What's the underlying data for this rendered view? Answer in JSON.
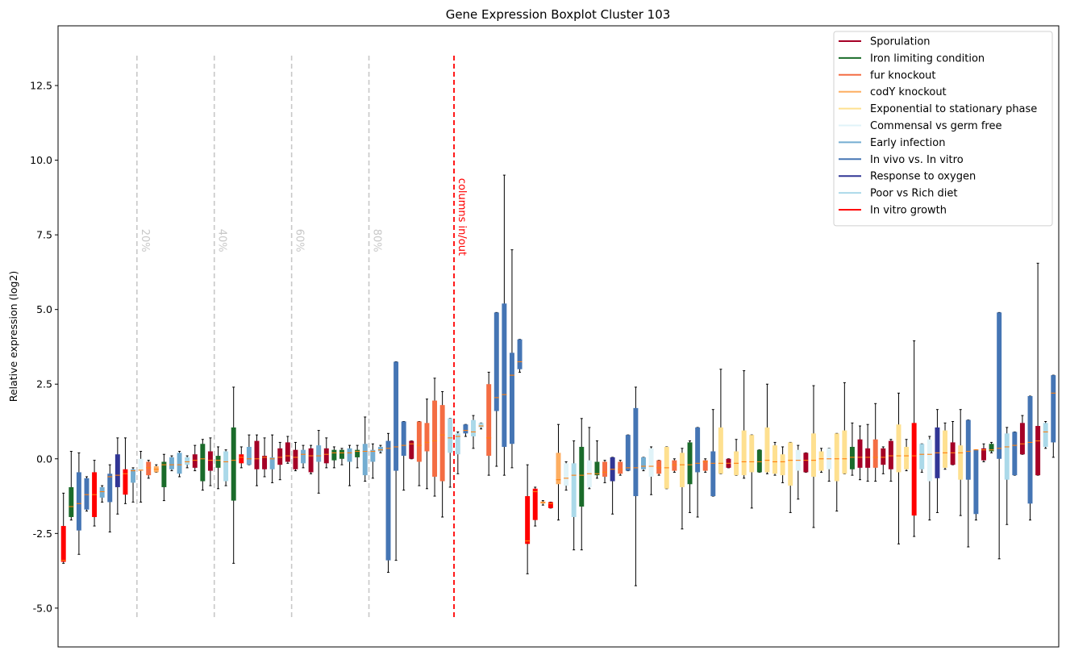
{
  "chart_data": {
    "type": "boxplot",
    "title": "Gene Expression Boxplot Cluster 103",
    "ylabel": "Relative expression (log2)",
    "xlabel": "",
    "ylim": [
      -6.3,
      14.5
    ],
    "yticks": [
      "-5.0",
      "-2.5",
      "0.0",
      "2.5",
      "5.0",
      "7.5",
      "10.0",
      "12.5"
    ],
    "ytick_values": [
      -5,
      -2.5,
      0,
      2.5,
      5,
      7.5,
      10,
      12.5
    ],
    "grid": false,
    "legend_placement": "top-right",
    "legend": [
      {
        "name": "Sporulation",
        "color": "#a50026"
      },
      {
        "name": "Iron limiting condition",
        "color": "#1a6b2a"
      },
      {
        "name": "fur knockout",
        "color": "#f46d43"
      },
      {
        "name": "codY knockout",
        "color": "#fdae61"
      },
      {
        "name": "Exponential to stationary phase",
        "color": "#fee090"
      },
      {
        "name": "Commensal vs germ free",
        "color": "#e0f3f8"
      },
      {
        "name": "Early infection",
        "color": "#74add1"
      },
      {
        "name": "In vivo vs. In vitro",
        "color": "#4575b4"
      },
      {
        "name": "Response to oxygen",
        "color": "#313695"
      },
      {
        "name": "Poor vs Rich diet",
        "color": "#abd9e9"
      },
      {
        "name": "In vitro growth",
        "color": "#ff0000"
      }
    ],
    "percent_markers": [
      {
        "label": "20%",
        "after_box": 9
      },
      {
        "label": "40%",
        "after_box": 19
      },
      {
        "label": "60%",
        "after_box": 29
      },
      {
        "label": "80%",
        "after_box": 39
      }
    ],
    "inout_marker": {
      "label": "columns in/out",
      "after_box": 50
    },
    "boxes": [
      {
        "c": 10,
        "wl": -3.5,
        "q1": -3.45,
        "med": -3.4,
        "q3": -2.25,
        "wh": -1.15
      },
      {
        "c": 1,
        "wl": -2.05,
        "q1": -1.95,
        "med": -1.6,
        "q3": -0.95,
        "wh": 0.25
      },
      {
        "c": 7,
        "wl": -3.2,
        "q1": -2.4,
        "med": -1.5,
        "q3": -0.45,
        "wh": 0.2
      },
      {
        "c": 7,
        "wl": -1.75,
        "q1": -1.7,
        "med": -1.2,
        "q3": -0.65,
        "wh": -0.6
      },
      {
        "c": 10,
        "wl": -2.25,
        "q1": -1.95,
        "med": -1.2,
        "q3": -0.45,
        "wh": -0.05
      },
      {
        "c": 6,
        "wl": -1.45,
        "q1": -1.3,
        "med": -1.1,
        "q3": -0.95,
        "wh": -0.9
      },
      {
        "c": 7,
        "wl": -2.45,
        "q1": -1.45,
        "med": -0.6,
        "q3": -0.5,
        "wh": -0.2
      },
      {
        "c": 8,
        "wl": -1.85,
        "q1": -0.95,
        "med": -0.55,
        "q3": 0.15,
        "wh": 0.7
      },
      {
        "c": 10,
        "wl": -1.5,
        "q1": -1.2,
        "med": -0.5,
        "q3": -0.35,
        "wh": 0.7
      },
      {
        "c": 6,
        "wl": -1.45,
        "q1": -0.8,
        "med": -0.4,
        "q3": -0.35,
        "wh": -0.3
      },
      {
        "c": 5,
        "wl": -1.45,
        "q1": -0.4,
        "med": -0.38,
        "q3": 0.0,
        "wh": 0.25
      },
      {
        "c": 2,
        "wl": -0.65,
        "q1": -0.55,
        "med": -0.3,
        "q3": -0.1,
        "wh": -0.05
      },
      {
        "c": 3,
        "wl": -0.45,
        "q1": -0.45,
        "med": -0.35,
        "q3": -0.25,
        "wh": -0.2
      },
      {
        "c": 1,
        "wl": -1.4,
        "q1": -0.95,
        "med": -0.2,
        "q3": -0.1,
        "wh": 0.15
      },
      {
        "c": 6,
        "wl": -0.4,
        "q1": -0.35,
        "med": -0.2,
        "q3": 0.05,
        "wh": 0.1
      },
      {
        "c": 6,
        "wl": -0.6,
        "q1": -0.5,
        "med": -0.2,
        "q3": 0.2,
        "wh": 0.25
      },
      {
        "c": 9,
        "wl": -0.3,
        "q1": -0.2,
        "med": -0.1,
        "q3": 0.05,
        "wh": 0.1
      },
      {
        "c": 0,
        "wl": -0.4,
        "q1": -0.3,
        "med": -0.05,
        "q3": 0.15,
        "wh": 0.45
      },
      {
        "c": 1,
        "wl": -1.05,
        "q1": -0.75,
        "med": 0.0,
        "q3": 0.5,
        "wh": 0.65
      },
      {
        "c": 0,
        "wl": -0.9,
        "q1": -0.4,
        "med": -0.05,
        "q3": 0.25,
        "wh": 0.7
      },
      {
        "c": 1,
        "wl": -1.0,
        "q1": -0.3,
        "med": -0.05,
        "q3": 0.1,
        "wh": 0.4
      },
      {
        "c": 9,
        "wl": -0.9,
        "q1": -0.75,
        "med": -0.1,
        "q3": 0.25,
        "wh": 0.3
      },
      {
        "c": 1,
        "wl": -3.5,
        "q1": -1.4,
        "med": -0.05,
        "q3": 1.05,
        "wh": 2.4
      },
      {
        "c": 10,
        "wl": -0.3,
        "q1": -0.15,
        "med": 0.05,
        "q3": 0.15,
        "wh": 0.4
      },
      {
        "c": 6,
        "wl": -0.2,
        "q1": -0.2,
        "med": 0.0,
        "q3": 0.4,
        "wh": 0.8
      },
      {
        "c": 0,
        "wl": -0.9,
        "q1": -0.35,
        "med": 0.0,
        "q3": 0.6,
        "wh": 0.8
      },
      {
        "c": 0,
        "wl": -0.6,
        "q1": -0.35,
        "med": 0.05,
        "q3": 0.1,
        "wh": 0.7
      },
      {
        "c": 6,
        "wl": -0.8,
        "q1": -0.35,
        "med": 0.0,
        "q3": 0.05,
        "wh": 0.8
      },
      {
        "c": 0,
        "wl": -0.7,
        "q1": -0.2,
        "med": 0.05,
        "q3": 0.35,
        "wh": 0.55
      },
      {
        "c": 0,
        "wl": -0.15,
        "q1": -0.1,
        "med": 0.1,
        "q3": 0.55,
        "wh": 0.75
      },
      {
        "c": 0,
        "wl": -0.4,
        "q1": -0.35,
        "med": 0.05,
        "q3": 0.3,
        "wh": 0.55
      },
      {
        "c": 6,
        "wl": -0.3,
        "q1": -0.15,
        "med": 0.15,
        "q3": 0.3,
        "wh": 0.45
      },
      {
        "c": 0,
        "wl": -0.5,
        "q1": -0.45,
        "med": 0.1,
        "q3": 0.35,
        "wh": 0.45
      },
      {
        "c": 6,
        "wl": -1.15,
        "q1": -0.1,
        "med": 0.1,
        "q3": 0.45,
        "wh": 0.95
      },
      {
        "c": 0,
        "wl": -0.3,
        "q1": -0.15,
        "med": 0.15,
        "q3": 0.35,
        "wh": 0.7
      },
      {
        "c": 1,
        "wl": -0.3,
        "q1": -0.05,
        "med": 0.2,
        "q3": 0.3,
        "wh": 0.4
      },
      {
        "c": 1,
        "wl": -0.2,
        "q1": 0.0,
        "med": 0.2,
        "q3": 0.3,
        "wh": 0.35
      },
      {
        "c": 6,
        "wl": -0.9,
        "q1": -0.1,
        "med": 0.2,
        "q3": 0.35,
        "wh": 0.45
      },
      {
        "c": 1,
        "wl": -0.3,
        "q1": 0.05,
        "med": 0.25,
        "q3": 0.3,
        "wh": 0.45
      },
      {
        "c": 6,
        "wl": -0.75,
        "q1": -0.55,
        "med": 0.25,
        "q3": 0.5,
        "wh": 1.4
      },
      {
        "c": 6,
        "wl": -0.65,
        "q1": -0.1,
        "med": 0.25,
        "q3": 0.3,
        "wh": 0.5
      },
      {
        "c": 6,
        "wl": 0.2,
        "q1": 0.25,
        "med": 0.3,
        "q3": 0.4,
        "wh": 0.45
      },
      {
        "c": 7,
        "wl": -3.8,
        "q1": -3.4,
        "med": 0.35,
        "q3": 0.6,
        "wh": 0.85
      },
      {
        "c": 7,
        "wl": -3.4,
        "q1": -0.4,
        "med": 0.4,
        "q3": 3.25,
        "wh": 3.25
      },
      {
        "c": 7,
        "wl": -1.05,
        "q1": 0.1,
        "med": 0.45,
        "q3": 1.25,
        "wh": 1.25
      },
      {
        "c": 0,
        "wl": 0.0,
        "q1": 0.0,
        "med": 0.5,
        "q3": 0.6,
        "wh": 0.6
      },
      {
        "c": 2,
        "wl": -0.9,
        "q1": -0.1,
        "med": 0.45,
        "q3": 1.25,
        "wh": 1.25
      },
      {
        "c": 2,
        "wl": -1.0,
        "q1": 0.25,
        "med": 0.55,
        "q3": 1.2,
        "wh": 2.0
      },
      {
        "c": 2,
        "wl": -1.25,
        "q1": -0.6,
        "med": 0.6,
        "q3": 1.95,
        "wh": 2.7
      },
      {
        "c": 2,
        "wl": -1.95,
        "q1": -0.75,
        "med": 0.8,
        "q3": 1.8,
        "wh": 2.25
      },
      {
        "c": 9,
        "wl": -0.95,
        "q1": 0.2,
        "med": 0.7,
        "q3": 1.35,
        "wh": 1.35
      },
      {
        "c": 9,
        "wl": -0.5,
        "q1": 0.15,
        "med": 0.75,
        "q3": 0.85,
        "wh": 0.9
      },
      {
        "c": 7,
        "wl": 0.75,
        "q1": 0.85,
        "med": 0.95,
        "q3": 1.15,
        "wh": 1.15
      },
      {
        "c": 9,
        "wl": 0.35,
        "q1": 0.75,
        "med": 0.9,
        "q3": 1.3,
        "wh": 1.45
      },
      {
        "c": 9,
        "wl": 1.0,
        "q1": 1.05,
        "med": 1.1,
        "q3": 1.2,
        "wh": 1.2
      },
      {
        "c": 2,
        "wl": -0.55,
        "q1": 0.1,
        "med": 0.7,
        "q3": 2.5,
        "wh": 2.9
      },
      {
        "c": 7,
        "wl": -0.25,
        "q1": 1.6,
        "med": 2.05,
        "q3": 4.9,
        "wh": 4.9
      },
      {
        "c": 7,
        "wl": -0.55,
        "q1": 0.4,
        "med": 2.15,
        "q3": 5.2,
        "wh": 9.5
      },
      {
        "c": 7,
        "wl": -0.3,
        "q1": 0.5,
        "med": 2.8,
        "q3": 3.55,
        "wh": 7.0
      },
      {
        "c": 7,
        "wl": 2.9,
        "q1": 3.0,
        "med": 3.25,
        "q3": 4.0,
        "wh": 4.0
      },
      {
        "c": 10,
        "wl": -3.85,
        "q1": -2.85,
        "med": -2.75,
        "q3": -1.25,
        "wh": -0.2
      },
      {
        "c": 10,
        "wl": -2.25,
        "q1": -2.05,
        "med": -1.1,
        "q3": -1.0,
        "wh": -0.95
      },
      {
        "c": 3,
        "wl": -1.55,
        "q1": -1.5,
        "med": -1.45,
        "q3": -1.45,
        "wh": -1.4
      },
      {
        "c": 10,
        "wl": -1.65,
        "q1": -1.65,
        "med": -1.5,
        "q3": -1.45,
        "wh": -1.45
      },
      {
        "c": 3,
        "wl": -2.05,
        "q1": -0.85,
        "med": -0.7,
        "q3": 0.2,
        "wh": 1.15
      },
      {
        "c": 5,
        "wl": -1.05,
        "q1": -0.9,
        "med": -0.65,
        "q3": -0.15,
        "wh": -0.1
      },
      {
        "c": 9,
        "wl": -3.05,
        "q1": -1.95,
        "med": -0.55,
        "q3": -0.15,
        "wh": 0.6
      },
      {
        "c": 1,
        "wl": -3.05,
        "q1": -1.6,
        "med": -0.55,
        "q3": 0.4,
        "wh": 1.35
      },
      {
        "c": 5,
        "wl": -1.0,
        "q1": -0.95,
        "med": -0.5,
        "q3": -0.05,
        "wh": 1.05
      },
      {
        "c": 1,
        "wl": -0.65,
        "q1": -0.55,
        "med": -0.5,
        "q3": -0.1,
        "wh": 0.6
      },
      {
        "c": 2,
        "wl": -0.8,
        "q1": -0.6,
        "med": -0.45,
        "q3": -0.1,
        "wh": -0.05
      },
      {
        "c": 8,
        "wl": -1.85,
        "q1": -0.75,
        "med": -0.35,
        "q3": 0.05,
        "wh": 0.05
      },
      {
        "c": 2,
        "wl": -0.55,
        "q1": -0.5,
        "med": -0.35,
        "q3": -0.1,
        "wh": -0.05
      },
      {
        "c": 7,
        "wl": -0.4,
        "q1": -0.4,
        "med": -0.3,
        "q3": 0.8,
        "wh": 0.8
      },
      {
        "c": 7,
        "wl": -4.25,
        "q1": -1.25,
        "med": -0.3,
        "q3": 1.7,
        "wh": 2.4
      },
      {
        "c": 6,
        "wl": -0.4,
        "q1": -0.35,
        "med": -0.25,
        "q3": 0.05,
        "wh": 0.05
      },
      {
        "c": 5,
        "wl": -1.2,
        "q1": -0.6,
        "med": -0.25,
        "q3": 0.35,
        "wh": 0.4
      },
      {
        "c": 2,
        "wl": -0.55,
        "q1": -0.5,
        "med": -0.3,
        "q3": -0.05,
        "wh": -0.05
      },
      {
        "c": 4,
        "wl": -1.0,
        "q1": -1.0,
        "med": -0.3,
        "q3": 0.4,
        "wh": 0.4
      },
      {
        "c": 2,
        "wl": -0.45,
        "q1": -0.4,
        "med": -0.2,
        "q3": -0.05,
        "wh": 0.0
      },
      {
        "c": 4,
        "wl": -2.35,
        "q1": -0.95,
        "med": -0.2,
        "q3": 0.2,
        "wh": 0.35
      },
      {
        "c": 1,
        "wl": -1.8,
        "q1": -0.85,
        "med": -0.2,
        "q3": 0.55,
        "wh": 0.6
      },
      {
        "c": 7,
        "wl": -1.95,
        "q1": -0.45,
        "med": -0.15,
        "q3": 1.05,
        "wh": 1.05
      },
      {
        "c": 2,
        "wl": -0.45,
        "q1": -0.4,
        "med": -0.1,
        "q3": -0.05,
        "wh": 0.0
      },
      {
        "c": 7,
        "wl": -1.25,
        "q1": -1.25,
        "med": -0.15,
        "q3": 0.25,
        "wh": 1.65
      },
      {
        "c": 4,
        "wl": -0.5,
        "q1": -0.5,
        "med": -0.15,
        "q3": 1.05,
        "wh": 3.0
      },
      {
        "c": 0,
        "wl": -0.3,
        "q1": -0.3,
        "med": -0.15,
        "q3": 0.0,
        "wh": 0.0
      },
      {
        "c": 4,
        "wl": -0.55,
        "q1": -0.55,
        "med": -0.15,
        "q3": 0.25,
        "wh": 0.65
      },
      {
        "c": 4,
        "wl": -0.65,
        "q1": -0.55,
        "med": -0.1,
        "q3": 0.95,
        "wh": 2.95
      },
      {
        "c": 4,
        "wl": -1.65,
        "q1": -0.45,
        "med": -0.1,
        "q3": 0.8,
        "wh": 0.8
      },
      {
        "c": 1,
        "wl": -0.45,
        "q1": -0.45,
        "med": -0.1,
        "q3": 0.3,
        "wh": 0.3
      },
      {
        "c": 4,
        "wl": -0.5,
        "q1": -0.45,
        "med": -0.05,
        "q3": 1.05,
        "wh": 2.5
      },
      {
        "c": 4,
        "wl": -0.55,
        "q1": -0.5,
        "med": -0.1,
        "q3": 0.45,
        "wh": 0.55
      },
      {
        "c": 4,
        "wl": -0.8,
        "q1": -0.55,
        "med": -0.1,
        "q3": 0.15,
        "wh": 0.4
      },
      {
        "c": 4,
        "wl": -1.8,
        "q1": -0.9,
        "med": -0.05,
        "q3": 0.55,
        "wh": 0.55
      },
      {
        "c": 5,
        "wl": -1.35,
        "q1": -0.4,
        "med": -0.05,
        "q3": 0.3,
        "wh": 0.45
      },
      {
        "c": 0,
        "wl": -0.45,
        "q1": -0.45,
        "med": -0.05,
        "q3": 0.2,
        "wh": 0.2
      },
      {
        "c": 4,
        "wl": -2.3,
        "q1": -0.6,
        "med": -0.05,
        "q3": 0.85,
        "wh": 2.45
      },
      {
        "c": 4,
        "wl": -0.45,
        "q1": -0.4,
        "med": 0.0,
        "q3": 0.25,
        "wh": 0.35
      },
      {
        "c": 5,
        "wl": -0.75,
        "q1": -0.35,
        "med": 0.0,
        "q3": 0.35,
        "wh": 0.35
      },
      {
        "c": 4,
        "wl": -1.75,
        "q1": -0.75,
        "med": 0.0,
        "q3": 0.85,
        "wh": 0.85
      },
      {
        "c": 4,
        "wl": -0.5,
        "q1": -0.5,
        "med": 0.0,
        "q3": 0.95,
        "wh": 2.55
      },
      {
        "c": 1,
        "wl": -0.55,
        "q1": -0.35,
        "med": 0.05,
        "q3": 0.4,
        "wh": 1.2
      },
      {
        "c": 0,
        "wl": -0.7,
        "q1": -0.3,
        "med": 0.05,
        "q3": 0.65,
        "wh": 1.1
      },
      {
        "c": 0,
        "wl": -0.75,
        "q1": -0.3,
        "med": 0.05,
        "q3": 0.35,
        "wh": 1.15
      },
      {
        "c": 2,
        "wl": -0.75,
        "q1": -0.3,
        "med": 0.05,
        "q3": 0.65,
        "wh": 1.85
      },
      {
        "c": 0,
        "wl": -0.5,
        "q1": -0.2,
        "med": 0.05,
        "q3": 0.35,
        "wh": 0.4
      },
      {
        "c": 0,
        "wl": -0.75,
        "q1": -0.35,
        "med": 0.1,
        "q3": 0.6,
        "wh": 0.65
      },
      {
        "c": 4,
        "wl": -2.85,
        "q1": -0.45,
        "med": 0.1,
        "q3": 1.15,
        "wh": 2.2
      },
      {
        "c": 4,
        "wl": -0.4,
        "q1": -0.35,
        "med": 0.1,
        "q3": 0.4,
        "wh": 0.65
      },
      {
        "c": 10,
        "wl": -2.6,
        "q1": -1.9,
        "med": 0.1,
        "q3": 1.2,
        "wh": 3.95
      },
      {
        "c": 9,
        "wl": -0.45,
        "q1": -0.35,
        "med": 0.15,
        "q3": 0.5,
        "wh": 0.5
      },
      {
        "c": 5,
        "wl": -2.05,
        "q1": -0.75,
        "med": 0.15,
        "q3": 0.65,
        "wh": 0.75
      },
      {
        "c": 8,
        "wl": -1.8,
        "q1": -0.65,
        "med": 0.2,
        "q3": 1.05,
        "wh": 1.65
      },
      {
        "c": 4,
        "wl": -0.35,
        "q1": -0.3,
        "med": 0.2,
        "q3": 0.95,
        "wh": 1.2
      },
      {
        "c": 0,
        "wl": -0.2,
        "q1": -0.2,
        "med": 0.2,
        "q3": 0.55,
        "wh": 1.25
      },
      {
        "c": 4,
        "wl": -1.9,
        "q1": -0.7,
        "med": 0.2,
        "q3": 0.45,
        "wh": 1.65
      },
      {
        "c": 7,
        "wl": -2.95,
        "q1": -0.7,
        "med": 0.25,
        "q3": 1.3,
        "wh": 1.3
      },
      {
        "c": 7,
        "wl": -2.05,
        "q1": -1.85,
        "med": 0.3,
        "q3": 0.3,
        "wh": 0.3
      },
      {
        "c": 0,
        "wl": -0.1,
        "q1": -0.05,
        "med": 0.3,
        "q3": 0.35,
        "wh": 0.5
      },
      {
        "c": 1,
        "wl": 0.2,
        "q1": 0.25,
        "med": 0.3,
        "q3": 0.5,
        "wh": 0.55
      },
      {
        "c": 7,
        "wl": -3.35,
        "q1": 0.0,
        "med": 0.35,
        "q3": 4.9,
        "wh": 4.9
      },
      {
        "c": 9,
        "wl": -2.2,
        "q1": -0.7,
        "med": 0.4,
        "q3": 0.85,
        "wh": 1.05
      },
      {
        "c": 7,
        "wl": -0.55,
        "q1": -0.55,
        "med": 0.45,
        "q3": 0.9,
        "wh": 0.9
      },
      {
        "c": 0,
        "wl": 0.15,
        "q1": 0.15,
        "med": 0.5,
        "q3": 1.2,
        "wh": 1.45
      },
      {
        "c": 7,
        "wl": -2.05,
        "q1": -1.5,
        "med": 0.55,
        "q3": 2.1,
        "wh": 2.1
      },
      {
        "c": 0,
        "wl": -0.55,
        "q1": -0.55,
        "med": 0.6,
        "q3": 1.1,
        "wh": 6.55
      },
      {
        "c": 9,
        "wl": 0.35,
        "q1": 0.4,
        "med": 0.9,
        "q3": 1.2,
        "wh": 1.25
      },
      {
        "c": 7,
        "wl": 0.05,
        "q1": 0.55,
        "med": 2.2,
        "q3": 2.8,
        "wh": 2.8
      }
    ]
  }
}
